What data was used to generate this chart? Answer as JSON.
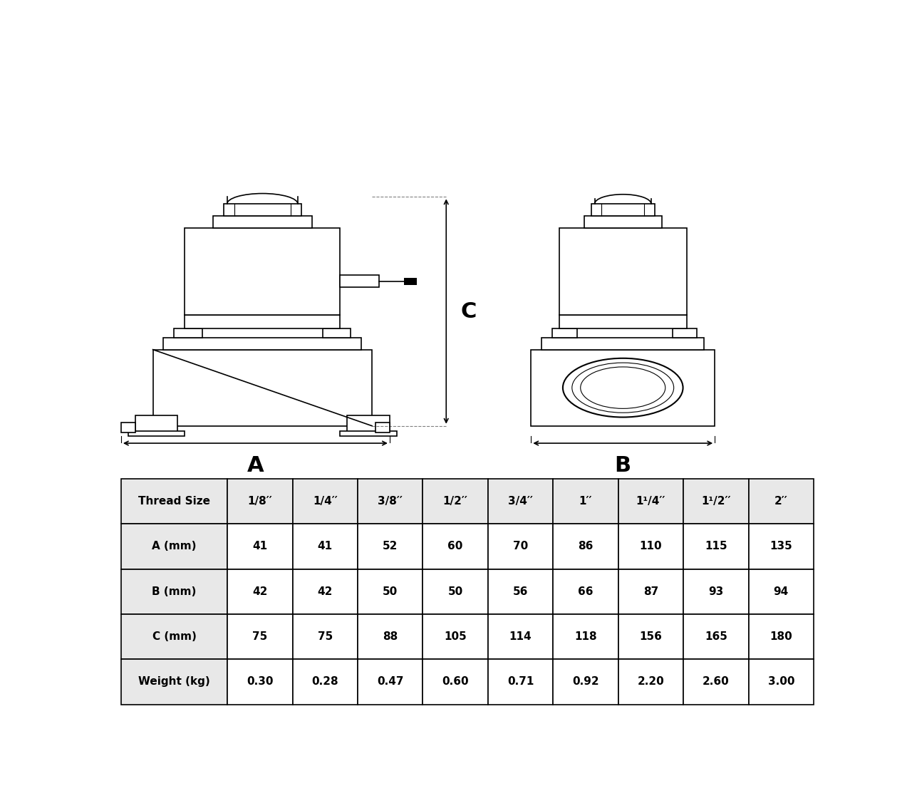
{
  "table_headers": [
    "Thread Size",
    "1/8′′",
    "1/4′′",
    "3/8′′",
    "1/2′′",
    "3/4′′",
    "1′′",
    "1¹/4′′",
    "1¹/2′′",
    "2′′"
  ],
  "table_rows": [
    [
      "A (mm)",
      "41",
      "41",
      "52",
      "60",
      "70",
      "86",
      "110",
      "115",
      "135"
    ],
    [
      "B (mm)",
      "42",
      "42",
      "50",
      "50",
      "56",
      "66",
      "87",
      "93",
      "94"
    ],
    [
      "C (mm)",
      "75",
      "75",
      "88",
      "105",
      "114",
      "118",
      "156",
      "165",
      "180"
    ],
    [
      "Weight (kg)",
      "0.30",
      "0.28",
      "0.47",
      "0.60",
      "0.71",
      "0.92",
      "2.20",
      "2.60",
      "3.00"
    ]
  ],
  "header_bg": "#e8e8e8",
  "row_bg_even": "#ffffff",
  "row_bg_odd": "#f5f5f5",
  "line_color": "#000000",
  "text_color": "#000000",
  "label_A": "A",
  "label_B": "B",
  "label_C": "C"
}
